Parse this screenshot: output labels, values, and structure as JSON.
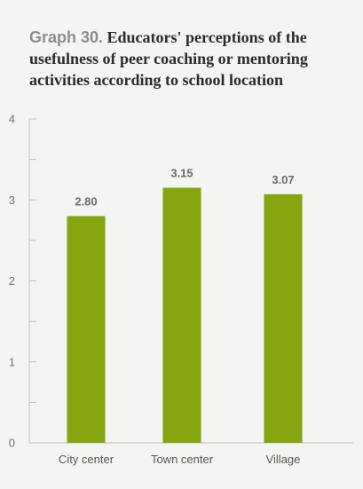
{
  "title_prefix": "Graph 30.",
  "title_text": "Educators' perceptions of the usefulness of peer coaching or mentoring activities according to school location",
  "colors": {
    "bar": "#86a50f",
    "axis": "#bdbdbd",
    "background": "#f4f4f2"
  },
  "chart_data": {
    "type": "bar",
    "categories": [
      "City center",
      "Town center",
      "Village"
    ],
    "values": [
      2.8,
      3.15,
      3.07
    ],
    "value_labels": [
      "2.80",
      "3.15",
      "3.07"
    ],
    "ylim": [
      0,
      4
    ],
    "yticks": [
      0,
      1,
      2,
      3,
      4
    ],
    "xlabel": "",
    "ylabel": "",
    "grid": false
  }
}
